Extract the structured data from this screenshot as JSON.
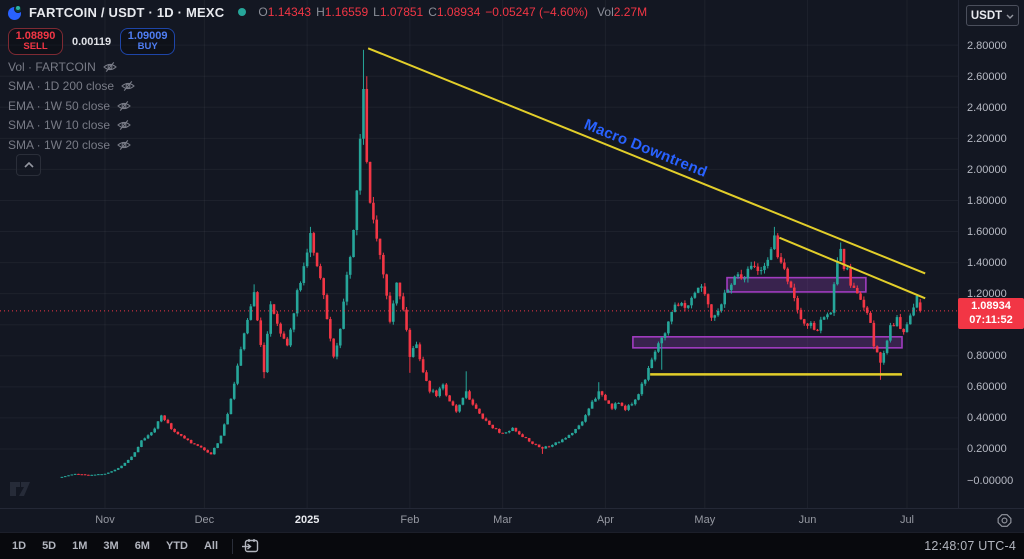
{
  "header": {
    "symbol_title": "FARTCOIN / USDT · 1D · MEXC",
    "ohlc": {
      "o_label": "O",
      "o": "1.14343",
      "h_label": "H",
      "h": "1.16559",
      "l_label": "L",
      "l": "1.07851",
      "c_label": "C",
      "c": "1.08934",
      "change": "−0.05247 (−4.60%)",
      "vol_label": "Vol",
      "vol": "2.27M"
    }
  },
  "trade_panel": {
    "sell_price": "1.08890",
    "sell_label": "SELL",
    "spread": "0.00119",
    "buy_price": "1.09009",
    "buy_label": "BUY"
  },
  "indicators": [
    {
      "label": "Vol · FARTCOIN"
    },
    {
      "label": "SMA · 1D 200 close"
    },
    {
      "label": "EMA · 1W 50 close"
    },
    {
      "label": "SMA · 1W 10 close"
    },
    {
      "label": "SMA · 1W 20 close"
    }
  ],
  "price_axis": {
    "currency": "USDT",
    "ticks": [
      {
        "p": 2.8,
        "label": "2.80000"
      },
      {
        "p": 2.6,
        "label": "2.60000"
      },
      {
        "p": 2.4,
        "label": "2.40000"
      },
      {
        "p": 2.2,
        "label": "2.20000"
      },
      {
        "p": 2.0,
        "label": "2.00000"
      },
      {
        "p": 1.8,
        "label": "1.80000"
      },
      {
        "p": 1.6,
        "label": "1.60000"
      },
      {
        "p": 1.4,
        "label": "1.40000"
      },
      {
        "p": 1.2,
        "label": "1.20000"
      },
      {
        "p": 0.8,
        "label": "0.80000"
      },
      {
        "p": 0.6,
        "label": "0.60000"
      },
      {
        "p": 0.4,
        "label": "0.40000"
      },
      {
        "p": 0.2,
        "label": "0.20000"
      },
      {
        "p": 0.0,
        "label": "−0.00000"
      }
    ],
    "current_price": "1.08934",
    "countdown": "07:11:52"
  },
  "time_axis": {
    "labels": [
      {
        "text": "Nov",
        "day": 13,
        "year": false
      },
      {
        "text": "Dec",
        "day": 43,
        "year": false
      },
      {
        "text": "2025",
        "day": 74,
        "year": true
      },
      {
        "text": "Feb",
        "day": 105,
        "year": false
      },
      {
        "text": "Mar",
        "day": 133,
        "year": false
      },
      {
        "text": "Apr",
        "day": 164,
        "year": false
      },
      {
        "text": "May",
        "day": 194,
        "year": false
      },
      {
        "text": "Jun",
        "day": 225,
        "year": false
      },
      {
        "text": "Jul",
        "day": 255,
        "year": false
      }
    ]
  },
  "toolbar": {
    "ranges": [
      {
        "label": "1D"
      },
      {
        "label": "5D"
      },
      {
        "label": "1M"
      },
      {
        "label": "3M"
      },
      {
        "label": "6M"
      },
      {
        "label": "YTD"
      },
      {
        "label": "All"
      }
    ],
    "clock": "12:48:07 UTC-4"
  },
  "chart_data": {
    "type": "candlestick",
    "symbol": "FARTCOIN/USDT",
    "timeframe": "1D",
    "exchange": "MEXC",
    "ylim": [
      0.0,
      2.8
    ],
    "grid": true,
    "colors": {
      "up": "#26a69a",
      "down": "#f23645",
      "trendline": "#e2ce2a",
      "zone_stroke": "#a13cc0",
      "zone_fill": "rgba(145,62,182,0.30)",
      "current_price": "#f23645",
      "grid": "rgba(149,152,161,0.08)",
      "annotation": "#2962ff"
    },
    "anchors": [
      [
        0,
        0.02
      ],
      [
        4,
        0.04
      ],
      [
        8,
        0.032
      ],
      [
        13,
        0.04
      ],
      [
        17,
        0.075
      ],
      [
        21,
        0.15
      ],
      [
        24,
        0.25
      ],
      [
        27,
        0.3
      ],
      [
        30,
        0.41
      ],
      [
        33,
        0.33
      ],
      [
        36,
        0.28
      ],
      [
        39,
        0.24
      ],
      [
        42,
        0.21
      ],
      [
        45,
        0.165
      ],
      [
        48,
        0.28
      ],
      [
        50,
        0.43
      ],
      [
        52,
        0.62
      ],
      [
        55,
        0.95
      ],
      [
        58,
        1.2
      ],
      [
        59,
        1.04
      ],
      [
        61,
        0.71
      ],
      [
        63,
        1.13
      ],
      [
        65,
        1.0
      ],
      [
        68,
        0.88
      ],
      [
        70,
        1.09
      ],
      [
        72,
        1.3
      ],
      [
        74,
        1.5
      ],
      [
        75,
        1.56
      ],
      [
        76,
        1.44
      ],
      [
        78,
        1.28
      ],
      [
        80,
        1.05
      ],
      [
        82,
        0.79
      ],
      [
        84,
        0.95
      ],
      [
        86,
        1.3
      ],
      [
        88,
        1.62
      ],
      [
        90,
        2.15
      ],
      [
        91,
        2.48
      ],
      [
        92,
        2.05
      ],
      [
        93,
        1.75
      ],
      [
        95,
        1.58
      ],
      [
        97,
        1.33
      ],
      [
        99,
        1.02
      ],
      [
        101,
        1.25
      ],
      [
        103,
        1.1
      ],
      [
        105,
        0.8
      ],
      [
        107,
        0.86
      ],
      [
        109,
        0.7
      ],
      [
        111,
        0.58
      ],
      [
        113,
        0.55
      ],
      [
        115,
        0.6
      ],
      [
        117,
        0.5
      ],
      [
        119,
        0.45
      ],
      [
        122,
        0.56
      ],
      [
        124,
        0.48
      ],
      [
        127,
        0.4
      ],
      [
        130,
        0.335
      ],
      [
        133,
        0.3
      ],
      [
        136,
        0.33
      ],
      [
        139,
        0.28
      ],
      [
        142,
        0.235
      ],
      [
        145,
        0.205
      ],
      [
        148,
        0.225
      ],
      [
        151,
        0.26
      ],
      [
        154,
        0.3
      ],
      [
        156,
        0.345
      ],
      [
        158,
        0.42
      ],
      [
        160,
        0.5
      ],
      [
        162,
        0.56
      ],
      [
        164,
        0.52
      ],
      [
        166,
        0.47
      ],
      [
        168,
        0.5
      ],
      [
        170,
        0.46
      ],
      [
        172,
        0.5
      ],
      [
        174,
        0.56
      ],
      [
        176,
        0.65
      ],
      [
        178,
        0.78
      ],
      [
        180,
        0.9
      ],
      [
        182,
        0.95
      ],
      [
        184,
        1.06
      ],
      [
        186,
        1.15
      ],
      [
        188,
        1.1
      ],
      [
        190,
        1.18
      ],
      [
        193,
        1.27
      ],
      [
        195,
        1.12
      ],
      [
        196,
        1.04
      ],
      [
        198,
        1.1
      ],
      [
        200,
        1.22
      ],
      [
        202,
        1.28
      ],
      [
        204,
        1.35
      ],
      [
        206,
        1.3
      ],
      [
        208,
        1.38
      ],
      [
        210,
        1.33
      ],
      [
        212,
        1.4
      ],
      [
        214,
        1.48
      ],
      [
        215,
        1.55
      ],
      [
        216,
        1.47
      ],
      [
        218,
        1.35
      ],
      [
        220,
        1.25
      ],
      [
        222,
        1.1
      ],
      [
        224,
        1.02
      ],
      [
        226,
        1.0
      ],
      [
        228,
        0.98
      ],
      [
        230,
        1.05
      ],
      [
        232,
        1.1
      ],
      [
        234,
        1.4
      ],
      [
        235,
        1.48
      ],
      [
        236,
        1.38
      ],
      [
        238,
        1.28
      ],
      [
        240,
        1.22
      ],
      [
        242,
        1.12
      ],
      [
        244,
        1.02
      ],
      [
        245,
        0.88
      ],
      [
        247,
        0.74
      ],
      [
        248,
        0.8
      ],
      [
        250,
        0.98
      ],
      [
        252,
        1.03
      ],
      [
        254,
        0.94
      ],
      [
        256,
        1.06
      ],
      [
        257,
        1.12
      ],
      [
        258,
        1.17
      ],
      [
        259,
        1.089
      ]
    ],
    "wick_overrides": {
      "58": {
        "h": 1.26
      },
      "61": {
        "l": 0.655
      },
      "75": {
        "h": 1.63
      },
      "91": {
        "h": 2.77
      },
      "92": {
        "h": 2.6
      },
      "105": {
        "l": 0.69
      },
      "122": {
        "h": 0.7
      },
      "145": {
        "l": 0.168
      },
      "162": {
        "h": 0.63
      },
      "181": {
        "l": 0.71
      },
      "215": {
        "h": 1.63
      },
      "235": {
        "h": 1.53
      },
      "247": {
        "l": 0.645
      }
    },
    "last_candle": {
      "open": 1.14343,
      "high": 1.16559,
      "low": 1.07851,
      "close": 1.08934
    },
    "current_price": 1.08934,
    "trendlines": [
      {
        "name": "macro-downtrend-line",
        "d1": 92.4,
        "p1": 2.78,
        "d2": 260.5,
        "p2": 1.33,
        "width": 2
      },
      {
        "name": "inner-downtrend-line",
        "d1": 216.5,
        "p1": 1.56,
        "d2": 260.5,
        "p2": 1.17,
        "width": 2
      }
    ],
    "support_line": {
      "d1": 177.5,
      "d2": 253.5,
      "p": 0.68,
      "width": 2.5
    },
    "zones": [
      {
        "name": "resistance-zone",
        "d1": 200.7,
        "d2": 242.6,
        "p_top": 1.303,
        "p_bottom": 1.211
      },
      {
        "name": "support-zone",
        "d1": 172.3,
        "d2": 253.5,
        "p_top": 0.922,
        "p_bottom": 0.851
      }
    ],
    "annotations": [
      {
        "text": "Macro Downtrend"
      }
    ],
    "grid_price_step": 0.2
  }
}
